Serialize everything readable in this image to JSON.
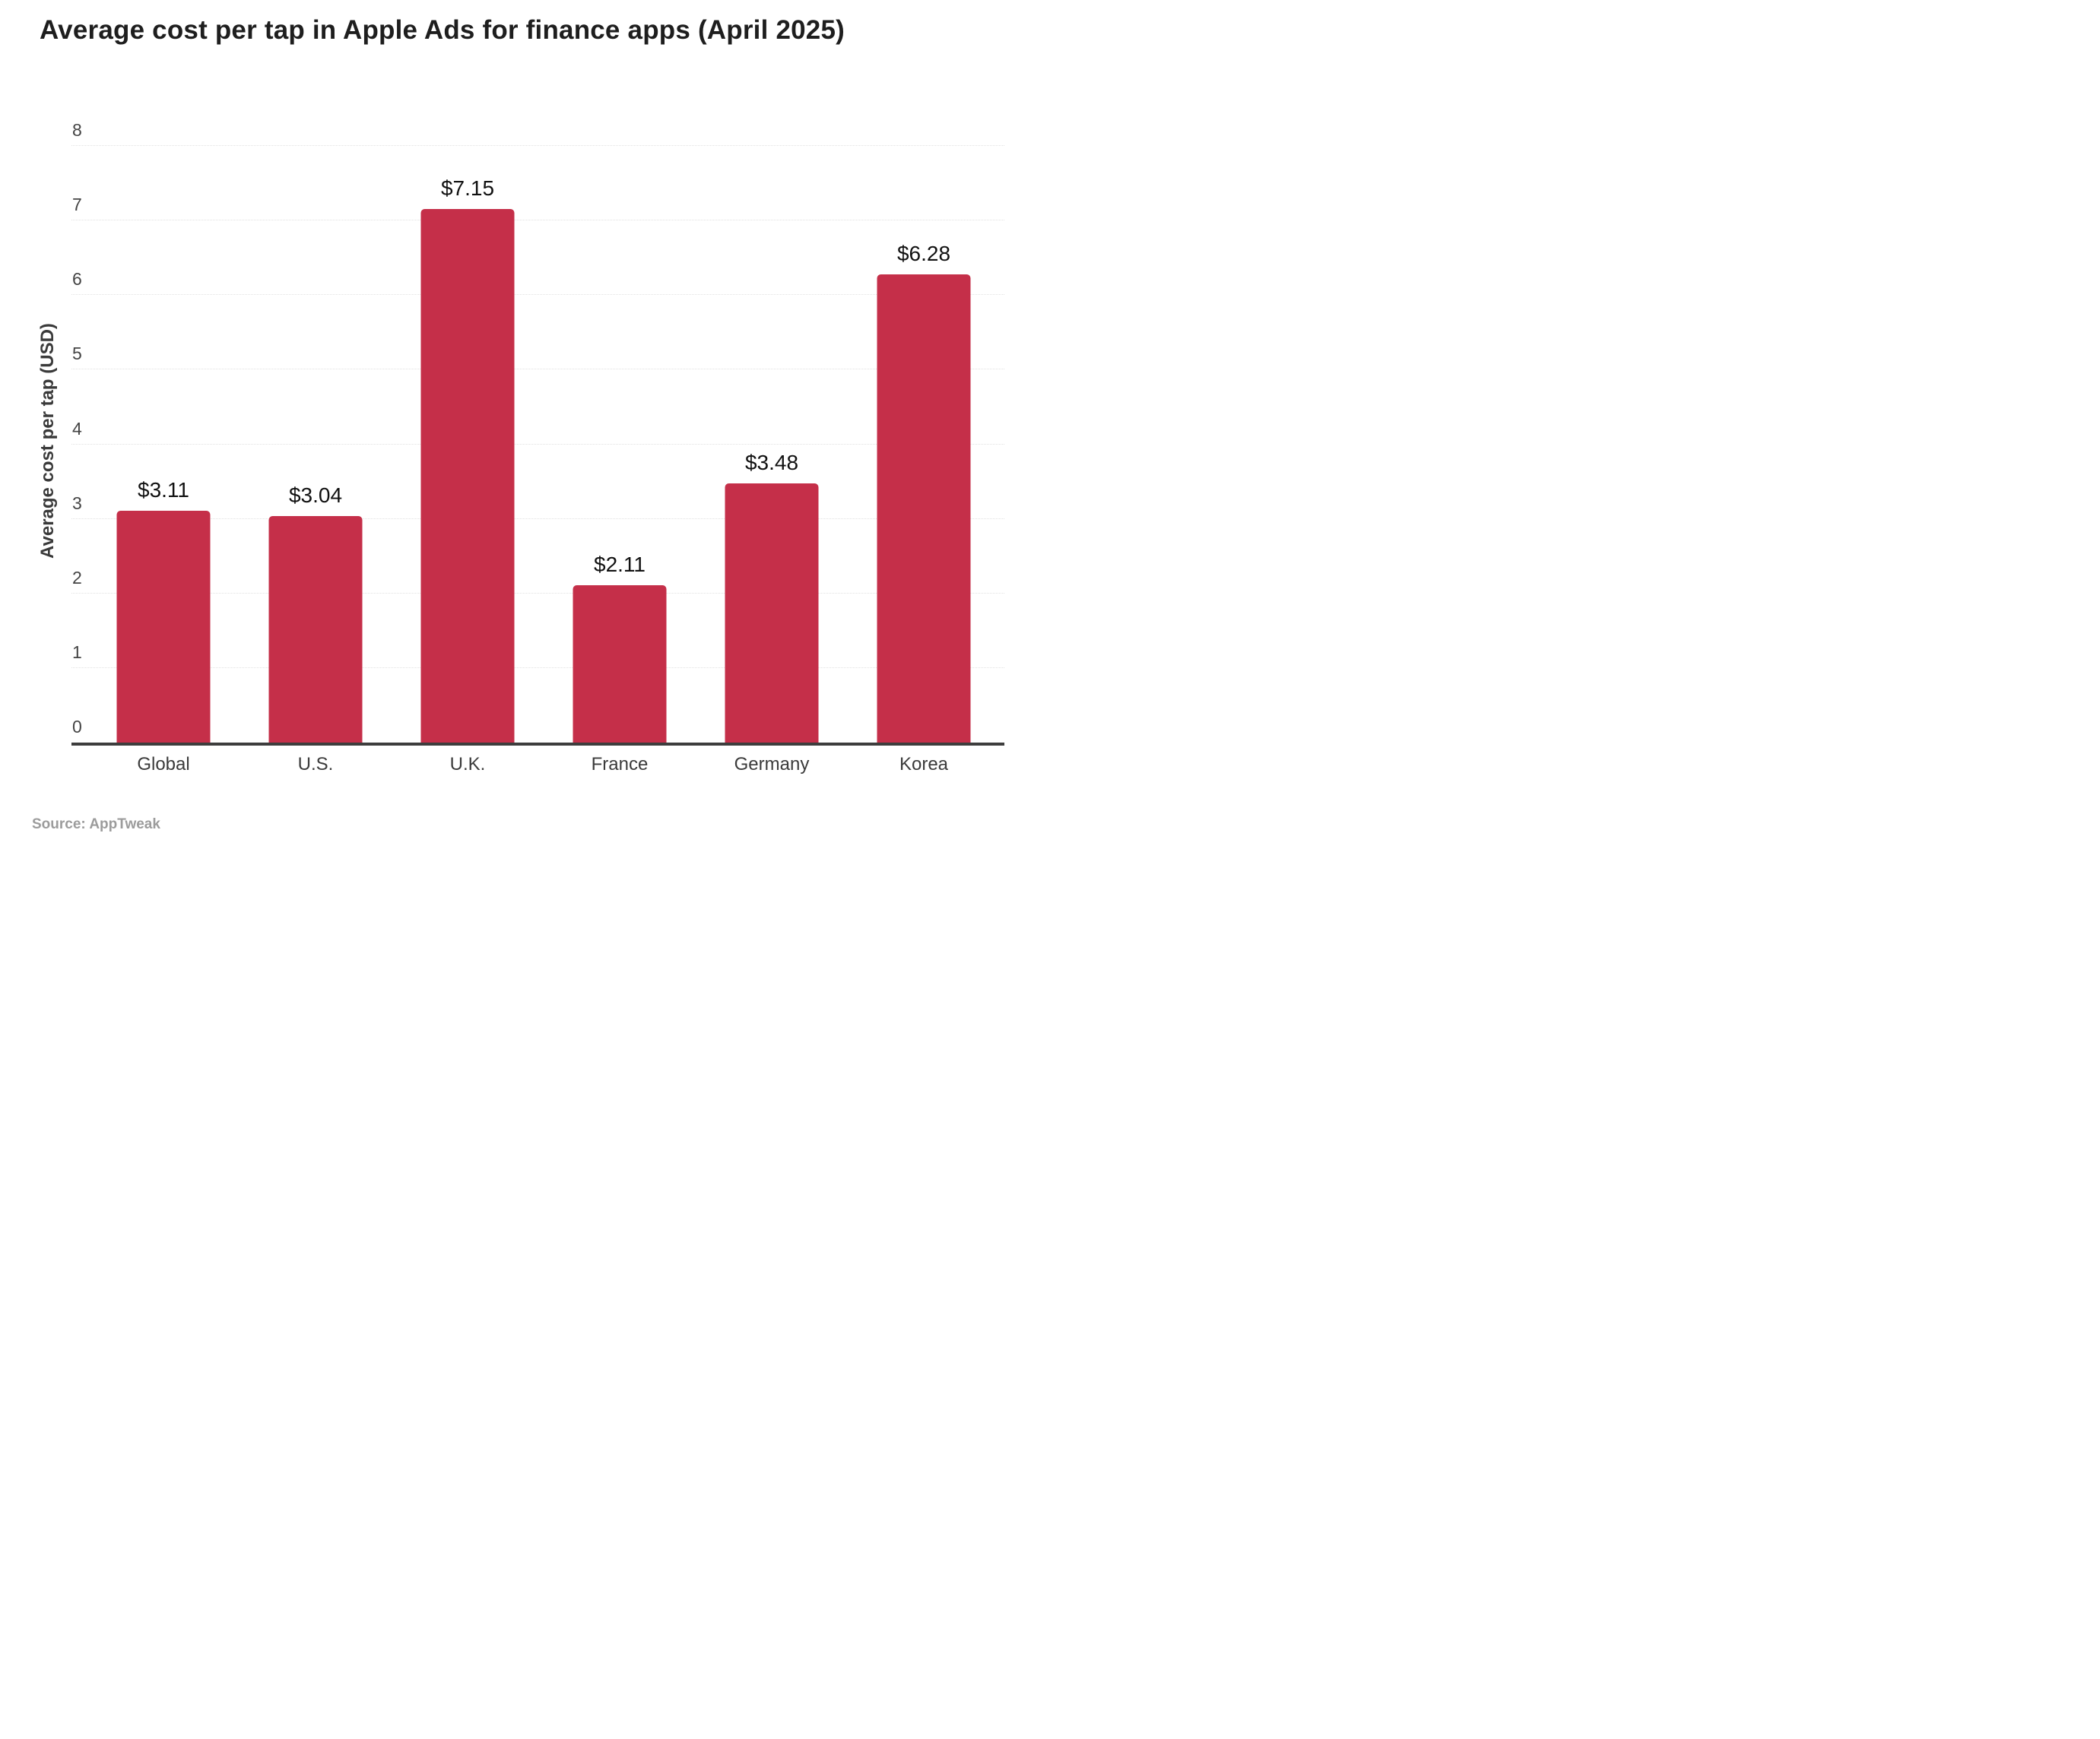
{
  "title": "Average cost per tap in Apple Ads for finance apps (April 2025)",
  "source_note": "Source: AppTweak",
  "colors": {
    "bar": "#c52f49",
    "title_text": "#1e1e1e",
    "axis_line": "#3d3d3d",
    "gridline": "#e2e2e2",
    "tick_text": "#444444",
    "category_text": "#3b3b3b",
    "value_label_text": "#111111",
    "source_text": "#9c9c9c",
    "background": "#ffffff"
  },
  "chart_data": {
    "type": "bar",
    "title": "Average cost per tap in Apple Ads for finance apps (April 2025)",
    "categories": [
      "Global",
      "U.S.",
      "U.K.",
      "France",
      "Germany",
      "Korea"
    ],
    "values": [
      3.11,
      3.04,
      7.15,
      2.11,
      3.48,
      6.28
    ],
    "value_labels": [
      "$3.11",
      "$3.04",
      "$7.15",
      "$2.11",
      "$3.48",
      "$6.28"
    ],
    "xlabel": "",
    "ylabel": "Average cost per tap (USD)",
    "ylim": [
      0,
      8
    ],
    "yticks": [
      0,
      1,
      2,
      3,
      4,
      5,
      6,
      7,
      8
    ],
    "grid": "horizontal",
    "legend": "none",
    "source": "Source: AppTweak"
  }
}
